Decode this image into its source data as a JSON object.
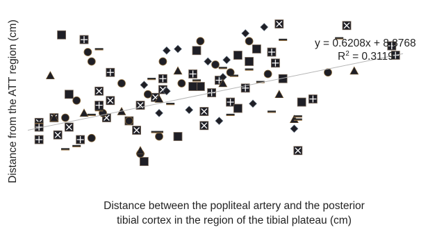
{
  "chart_data": {
    "type": "scatter",
    "title": "",
    "xlabel_line1": "Distance between the popliteal artery and the posterior",
    "xlabel_line2": "tibial cortex in the region of the tibial plateau (cm)",
    "ylabel": "Distance from the ATT region (cm)",
    "xlim": [
      0,
      1
    ],
    "ylim": [
      0,
      1
    ],
    "grid": false,
    "legend": "none",
    "trendline": {
      "equation": "y = 0.6208x + 8.8768",
      "r2_prefix": "R",
      "r2_sup": "2",
      "r2_rest": " = 0.3119",
      "start": [
        0,
        0.3
      ],
      "end": [
        1,
        0.79
      ]
    },
    "series": [
      {
        "marker": "filled-square-x",
        "values": [
          [
            0.67,
            0.98
          ],
          [
            0.85,
            0.97
          ],
          [
            0.03,
            0.35
          ],
          [
            0.07,
            0.38
          ],
          [
            0.08,
            0.27
          ],
          [
            0.11,
            0.32
          ],
          [
            0.19,
            0.55
          ],
          [
            0.21,
            0.38
          ],
          [
            0.27,
            0.36
          ],
          [
            0.3,
            0.46
          ],
          [
            0.29,
            0.3
          ],
          [
            0.36,
            0.56
          ],
          [
            0.47,
            0.42
          ],
          [
            0.47,
            0.33
          ],
          [
            0.34,
            0.51
          ],
          [
            0.22,
            0.49
          ],
          [
            0.72,
            0.17
          ]
        ]
      },
      {
        "marker": "filled-square-plus",
        "values": [
          [
            0.03,
            0.32
          ],
          [
            0.03,
            0.24
          ],
          [
            0.15,
            0.88
          ],
          [
            0.36,
            0.63
          ],
          [
            0.44,
            0.66
          ],
          [
            0.49,
            0.54
          ],
          [
            0.54,
            0.48
          ],
          [
            0.58,
            0.57
          ],
          [
            0.66,
            0.73
          ],
          [
            0.65,
            0.8
          ],
          [
            0.97,
            0.84
          ],
          [
            0.98,
            0.78
          ],
          [
            0.76,
            0.5
          ],
          [
            0.51,
            0.62
          ],
          [
            0.22,
            0.67
          ],
          [
            0.19,
            0.46
          ],
          [
            0.14,
            0.24
          ]
        ]
      },
      {
        "marker": "filled-square",
        "values": [
          [
            0.11,
            0.53
          ],
          [
            0.45,
            0.81
          ],
          [
            0.56,
            0.78
          ],
          [
            0.59,
            0.74
          ],
          [
            0.61,
            0.82
          ],
          [
            0.46,
            0.58
          ],
          [
            0.56,
            0.44
          ],
          [
            0.4,
            0.26
          ],
          [
            0.31,
            0.1
          ],
          [
            0.68,
            0.63
          ],
          [
            0.73,
            0.48
          ],
          [
            0.09,
            0.91
          ],
          [
            0.44,
            0.58
          ]
        ]
      },
      {
        "marker": "circle",
        "values": [
          [
            0.16,
            0.8
          ],
          [
            0.17,
            0.74
          ],
          [
            0.25,
            0.6
          ],
          [
            0.32,
            0.53
          ],
          [
            0.41,
            0.6
          ],
          [
            0.36,
            0.74
          ],
          [
            0.5,
            0.72
          ],
          [
            0.54,
            0.67
          ],
          [
            0.59,
            0.87
          ],
          [
            0.64,
            0.66
          ],
          [
            0.8,
            0.67
          ],
          [
            0.2,
            0.41
          ],
          [
            0.27,
            0.36
          ],
          [
            0.17,
            0.25
          ],
          [
            0.13,
            0.49
          ],
          [
            0.46,
            0.87
          ],
          [
            0.3,
            0.15
          ],
          [
            0.35,
            0.26
          ],
          [
            0.1,
            0.38
          ]
        ]
      },
      {
        "marker": "diamond",
        "values": [
          [
            0.37,
            0.81
          ],
          [
            0.4,
            0.82
          ],
          [
            0.48,
            0.74
          ],
          [
            0.52,
            0.64
          ],
          [
            0.53,
            0.75
          ],
          [
            0.58,
            0.92
          ],
          [
            0.63,
            0.96
          ],
          [
            0.43,
            0.43
          ],
          [
            0.51,
            0.36
          ],
          [
            0.6,
            0.47
          ],
          [
            0.35,
            0.41
          ],
          [
            0.37,
            0.55
          ],
          [
            0.71,
            0.31
          ],
          [
            0.31,
            0.59
          ]
        ]
      },
      {
        "marker": "triangle",
        "values": [
          [
            0.06,
            0.65
          ],
          [
            0.3,
            0.17
          ],
          [
            0.4,
            0.68
          ],
          [
            0.52,
            0.6
          ],
          [
            0.67,
            0.53
          ],
          [
            0.15,
            0.41
          ],
          [
            0.07,
            0.38
          ],
          [
            0.71,
            0.37
          ],
          [
            0.87,
            0.68
          ],
          [
            0.25,
            0.42
          ],
          [
            0.35,
            0.5
          ]
        ]
      },
      {
        "marker": "dash",
        "values": [
          [
            0.03,
            0.35
          ],
          [
            0.1,
            0.18
          ],
          [
            0.17,
            0.4
          ],
          [
            0.19,
            0.43
          ],
          [
            0.33,
            0.63
          ],
          [
            0.34,
            0.29
          ],
          [
            0.35,
            0.29
          ],
          [
            0.38,
            0.47
          ],
          [
            0.45,
            0.62
          ],
          [
            0.52,
            0.7
          ],
          [
            0.55,
            0.65
          ],
          [
            0.59,
            0.69
          ],
          [
            0.62,
            0.61
          ],
          [
            0.65,
            0.42
          ],
          [
            0.72,
            0.37
          ],
          [
            0.72,
            0.39
          ],
          [
            0.68,
            0.88
          ],
          [
            0.83,
            0.89
          ],
          [
            0.19,
            0.82
          ],
          [
            0.54,
            0.4
          ],
          [
            0.13,
            0.2
          ]
        ]
      }
    ]
  }
}
